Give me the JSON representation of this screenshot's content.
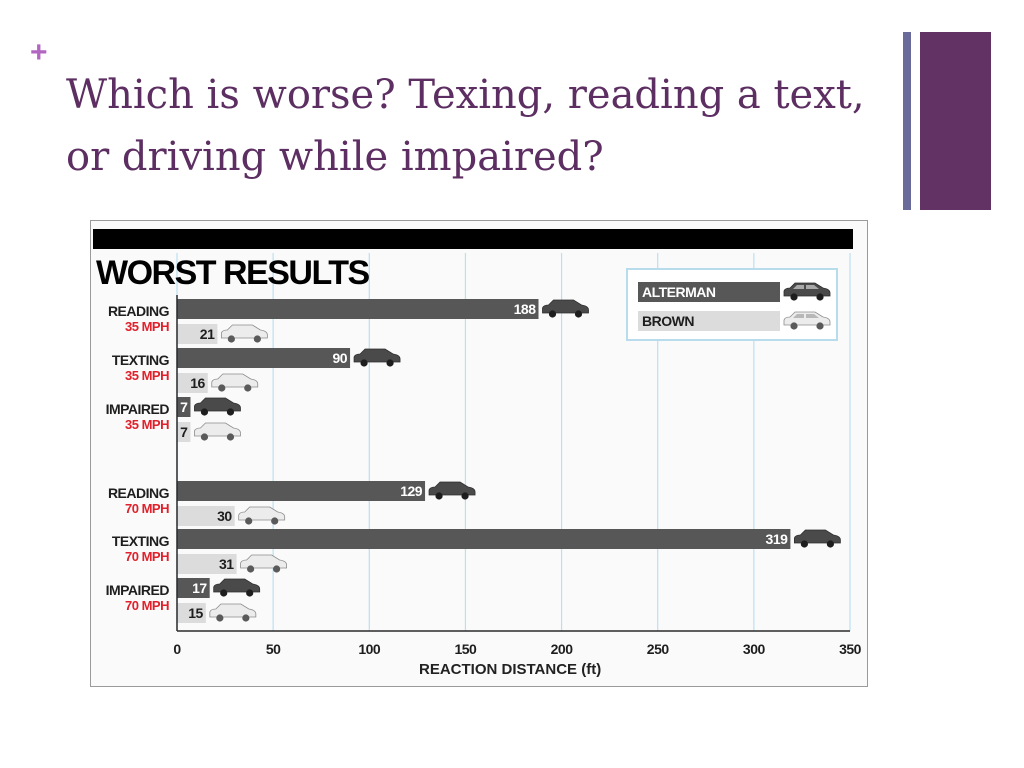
{
  "slide": {
    "title": "Which is worse? Texing, reading a text, or driving while impaired?",
    "bullet_symbol": "+"
  },
  "colors": {
    "title": "#5c2e62",
    "accent_purple": "#633264",
    "accent_slate": "#6a6a9a",
    "plus_mark": "#b266c2",
    "alterman_bar": "#575757",
    "brown_bar": "#dcdcdc",
    "speed_label": "#e0202a",
    "gridline": "#bcdff0",
    "header_band": "#000000"
  },
  "chart_data": {
    "type": "bar",
    "orientation": "horizontal",
    "title": "WORST RESULTS",
    "xlabel": "REACTION DISTANCE (ft)",
    "ylabel": "",
    "xlim": [
      0,
      350
    ],
    "xticks": [
      "0",
      "50",
      "100",
      "150",
      "200",
      "250",
      "300",
      "350"
    ],
    "grid": true,
    "legend_position": "top-right",
    "groups": [
      {
        "activity": "READING",
        "speed": "35 MPH"
      },
      {
        "activity": "TEXTING",
        "speed": "35 MPH"
      },
      {
        "activity": "IMPAIRED",
        "speed": "35 MPH"
      },
      {
        "activity": "READING",
        "speed": "70 MPH"
      },
      {
        "activity": "TEXTING",
        "speed": "70 MPH"
      },
      {
        "activity": "IMPAIRED",
        "speed": "70 MPH"
      }
    ],
    "series": [
      {
        "name": "ALTERMAN",
        "values": [
          188,
          90,
          7,
          129,
          319,
          17
        ]
      },
      {
        "name": "BROWN",
        "values": [
          21,
          16,
          7,
          30,
          31,
          15
        ]
      }
    ]
  }
}
